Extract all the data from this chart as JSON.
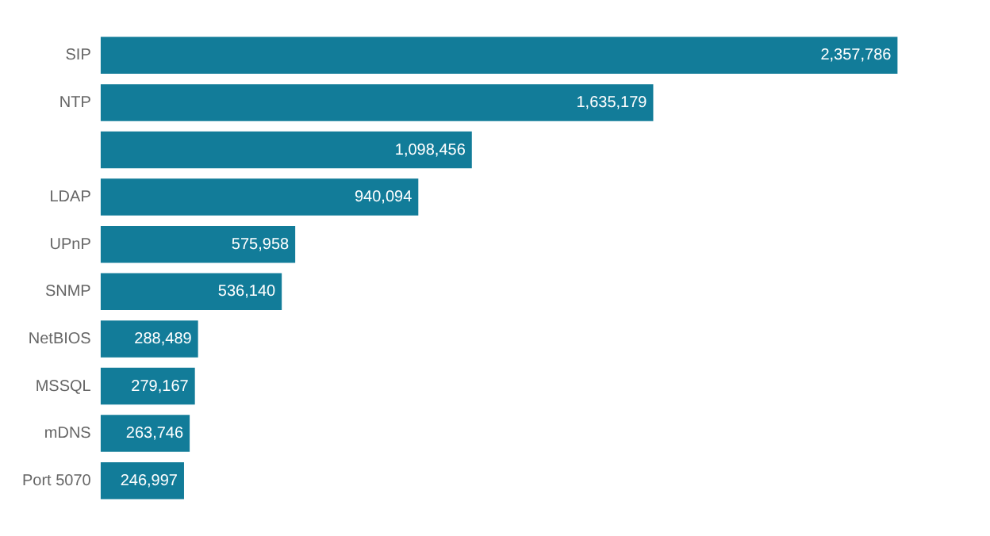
{
  "chart_data": {
    "type": "bar",
    "orientation": "horizontal",
    "categories": [
      "SIP",
      "NTP",
      null,
      "LDAP",
      "UPnP",
      "SNMP",
      "NetBIOS",
      "MSSQL",
      "mDNS",
      "Port 5070"
    ],
    "values": [
      2357786,
      1635179,
      1098456,
      940094,
      575958,
      536140,
      288489,
      279167,
      263746,
      246997
    ],
    "value_labels": [
      "2,357,786",
      "1,635,179",
      "1,098,456",
      "940,094",
      "575,958",
      "536,140",
      "288,489",
      "279,167",
      "263,746",
      "246,997"
    ],
    "color": "#127c99",
    "legend": false,
    "tick_labels": "y"
  }
}
